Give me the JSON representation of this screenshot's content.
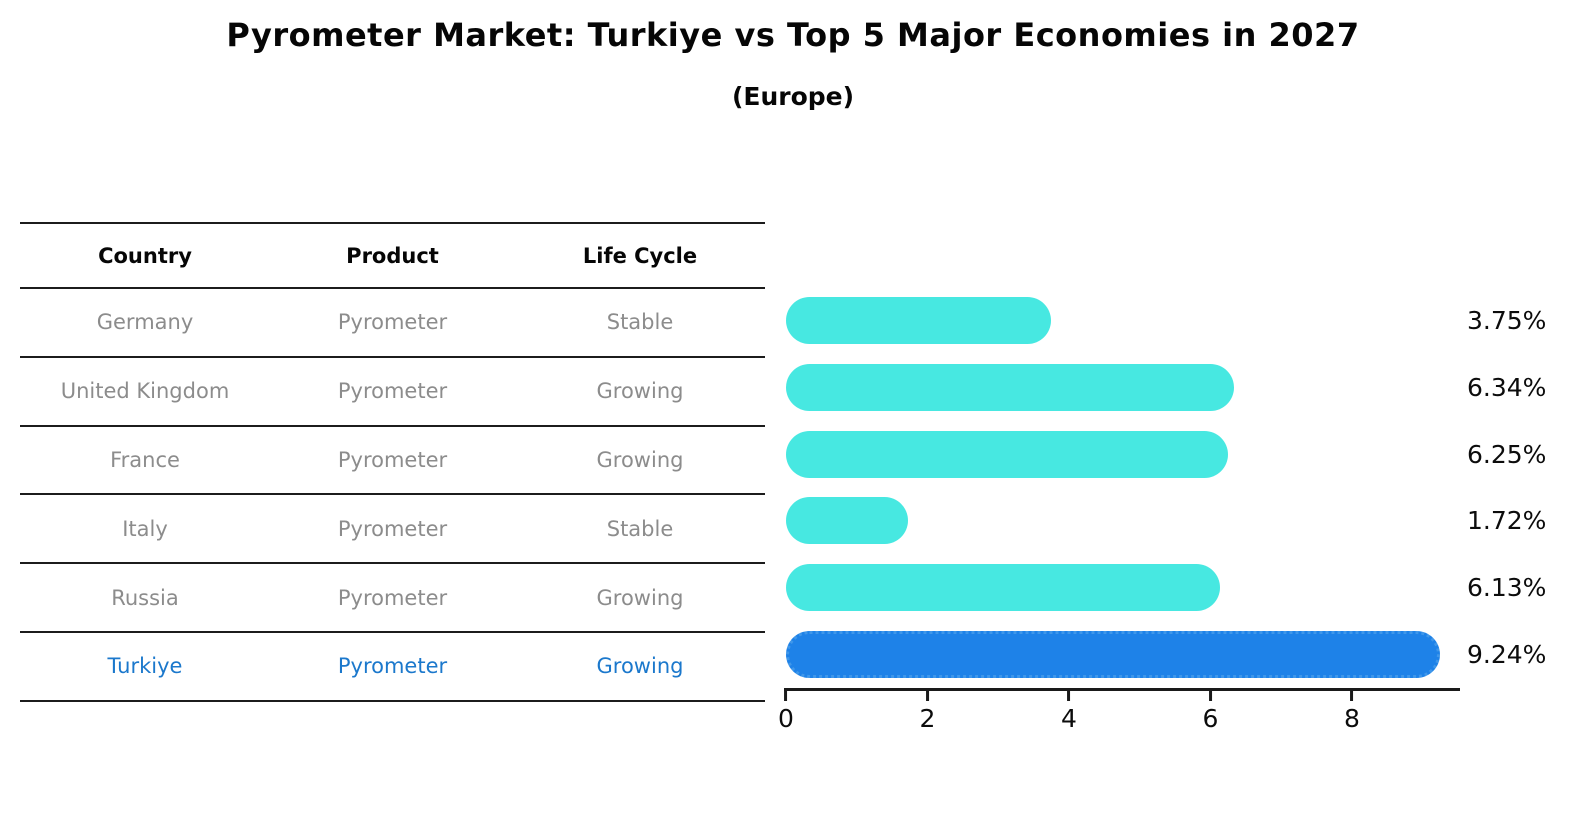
{
  "title": "Pyrometer Market: Turkiye vs Top 5 Major Economies in 2027",
  "subtitle": "(Europe)",
  "colors": {
    "bar": "#47e8e1",
    "highlight_bar": "#1e82e8",
    "highlight_bar_dots": "#3f97ea",
    "highlight_text": "#1b78cc",
    "muted_text": "#8c8c8c",
    "axis": "#1a1a1a"
  },
  "table": {
    "columns": [
      "Country",
      "Product",
      "Life Cycle"
    ],
    "rows": [
      {
        "country": "Germany",
        "product": "Pyrometer",
        "life_cycle": "Stable",
        "highlight": false
      },
      {
        "country": "United Kingdom",
        "product": "Pyrometer",
        "life_cycle": "Growing",
        "highlight": false
      },
      {
        "country": "France",
        "product": "Pyrometer",
        "life_cycle": "Growing",
        "highlight": false
      },
      {
        "country": "Italy",
        "product": "Pyrometer",
        "life_cycle": "Stable",
        "highlight": false
      },
      {
        "country": "Russia",
        "product": "Pyrometer",
        "life_cycle": "Growing",
        "highlight": false
      },
      {
        "country": "Turkiye",
        "product": "Pyrometer",
        "life_cycle": "Growing",
        "highlight": true
      }
    ]
  },
  "chart_data": {
    "type": "bar",
    "orientation": "horizontal",
    "title": "Pyrometer Market: Turkiye vs Top 5 Major Economies in 2027 (Europe)",
    "categories": [
      "Germany",
      "United Kingdom",
      "France",
      "Italy",
      "Russia",
      "Turkiye"
    ],
    "values": [
      3.75,
      6.34,
      6.25,
      1.72,
      6.13,
      9.24
    ],
    "labels": [
      "3.75%",
      "6.34%",
      "6.25%",
      "1.72%",
      "6.13%",
      "9.24%"
    ],
    "highlight_index": 5,
    "xlabel": "",
    "ylabel": "",
    "xlim": [
      0,
      9.5
    ],
    "xticks": [
      0,
      2,
      4,
      6,
      8
    ],
    "grid": false,
    "legend": false
  }
}
